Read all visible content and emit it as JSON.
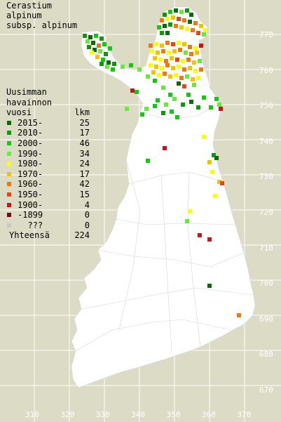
{
  "title": {
    "line1": "Cerastium",
    "line2": "alpinum",
    "line3": "subsp. alpinum"
  },
  "legend": {
    "header1": "Uusimman",
    "header2": "havainnon",
    "header3_label": "vuosi",
    "header3_count": "lkm",
    "items": [
      {
        "label": "2015-",
        "count": "25",
        "color": "#0a6b0a"
      },
      {
        "label": "2010-",
        "count": "17",
        "color": "#0c9a0c"
      },
      {
        "label": "2000-",
        "count": "46",
        "color": "#14c814"
      },
      {
        "label": "1990-",
        "count": "34",
        "color": "#6be83c"
      },
      {
        "label": "1980-",
        "count": "24",
        "color": "#ffff00"
      },
      {
        "label": "1970-",
        "count": "17",
        "color": "#f2c400"
      },
      {
        "label": "1960-",
        "count": "42",
        "color": "#f07814"
      },
      {
        "label": "1950-",
        "count": "15",
        "color": "#e64614"
      },
      {
        "label": "1900-",
        "count": "4",
        "color": "#c81414"
      },
      {
        "label": "-1899",
        "count": "0",
        "color": "#7a0a0a"
      },
      {
        "label": "???",
        "count": "0",
        "color": "#c8c8c8"
      }
    ],
    "total_label": "Yhteensä",
    "total_count": "224"
  },
  "axes": {
    "y_ticks": [
      "770",
      "760",
      "750",
      "740",
      "730",
      "720",
      "710",
      "700",
      "690",
      "680",
      "670"
    ],
    "x_ticks": [
      "310",
      "320",
      "330",
      "340",
      "350",
      "360",
      "370"
    ]
  },
  "colors": {
    "background": "#dcdcc6",
    "land": "#ffffff",
    "grid": "#ffffff",
    "borders": "#d2d2d2"
  }
}
